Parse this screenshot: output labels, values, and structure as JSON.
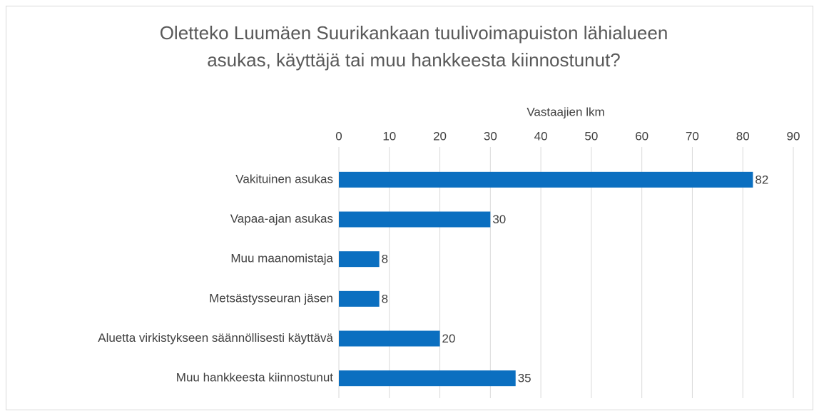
{
  "chart_data": {
    "type": "bar",
    "orientation": "horizontal",
    "title": [
      "Oletteko Luumäen Suurikankaan tuulivoimapuiston lähialueen",
      "asukas, käyttäjä tai muu hankkeesta kiinnostunut?"
    ],
    "xlabel": "Vastaajien lkm",
    "categories": [
      "Vakituinen asukas",
      "Vapaa-ajan asukas",
      "Muu maanomistaja",
      "Metsästysseuran jäsen",
      "Aluetta virkistykseen säännöllisesti käyttävä",
      "Muu hankkeesta kiinnostunut"
    ],
    "values": [
      82,
      30,
      8,
      8,
      20,
      35
    ],
    "color": "#0b6fc0",
    "xlim": [
      0,
      90
    ],
    "xticks": [
      0,
      10,
      20,
      30,
      40,
      50,
      60,
      70,
      80,
      90
    ],
    "grid": true
  }
}
